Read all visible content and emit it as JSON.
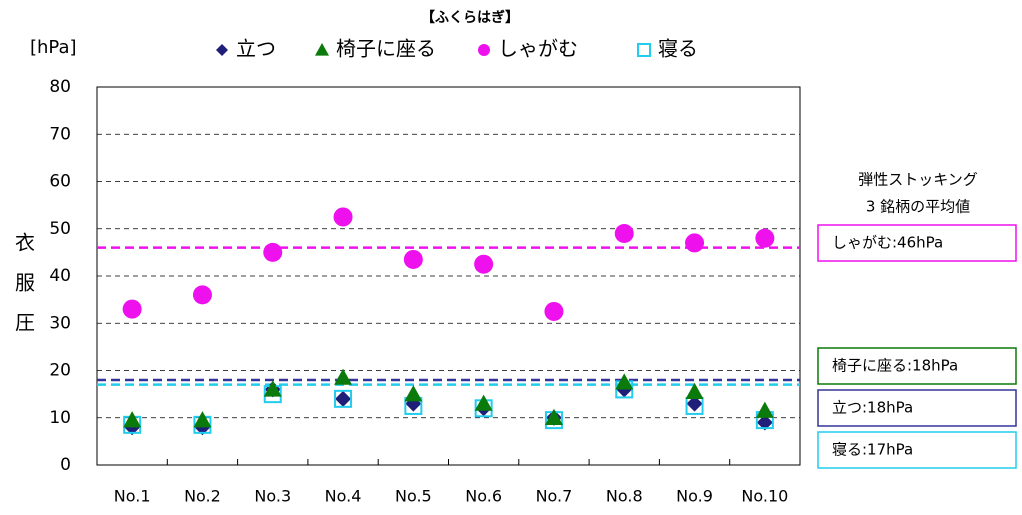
{
  "chart_data": {
    "type": "scatter",
    "title": "【ふくらはぎ】",
    "unit_label": "[hPa]",
    "y_label": "衣服圧",
    "categories": [
      "No.1",
      "No.2",
      "No.3",
      "No.4",
      "No.5",
      "No.6",
      "No.7",
      "No.8",
      "No.9",
      "No.10"
    ],
    "series": [
      {
        "name": "立つ",
        "color": "#1f1f7a",
        "marker": "diamond",
        "values": [
          8,
          8,
          16,
          14,
          13,
          12,
          10,
          16,
          13,
          9
        ]
      },
      {
        "name": "椅子に座る",
        "color": "#0a7a0a",
        "marker": "triangle",
        "values": [
          9.5,
          9.5,
          16,
          18.5,
          15,
          13,
          10,
          17.5,
          15.5,
          11.5
        ]
      },
      {
        "name": "しゃがむ",
        "color": "#ee11ee",
        "marker": "circle",
        "values": [
          33,
          36,
          45,
          52.5,
          43.5,
          42.5,
          32.5,
          49,
          47,
          48
        ]
      },
      {
        "name": "寝る",
        "color": "#22ccee",
        "marker": "square",
        "values": [
          8.5,
          8.5,
          15,
          14,
          12.5,
          12,
          9.5,
          16,
          12.5,
          9.5
        ]
      }
    ],
    "ylim": [
      0,
      80
    ],
    "yticks": [
      0,
      10,
      20,
      30,
      40,
      50,
      60,
      70,
      80
    ],
    "grid": true,
    "annotation_title": [
      "弾性ストッキング",
      "3 銘柄の平均値"
    ],
    "annotations": [
      {
        "value": 46,
        "label": "しゃがむ:46hPa",
        "color": "#ee11ee"
      },
      {
        "value": 18,
        "label": "椅子に座る:18hPa",
        "color": "#0a7a0a"
      },
      {
        "value": 18,
        "label": "立つ:18hPa",
        "color": "#33339a"
      },
      {
        "value": 17,
        "label": "寝る:17hPa",
        "color": "#22ccee"
      }
    ]
  }
}
